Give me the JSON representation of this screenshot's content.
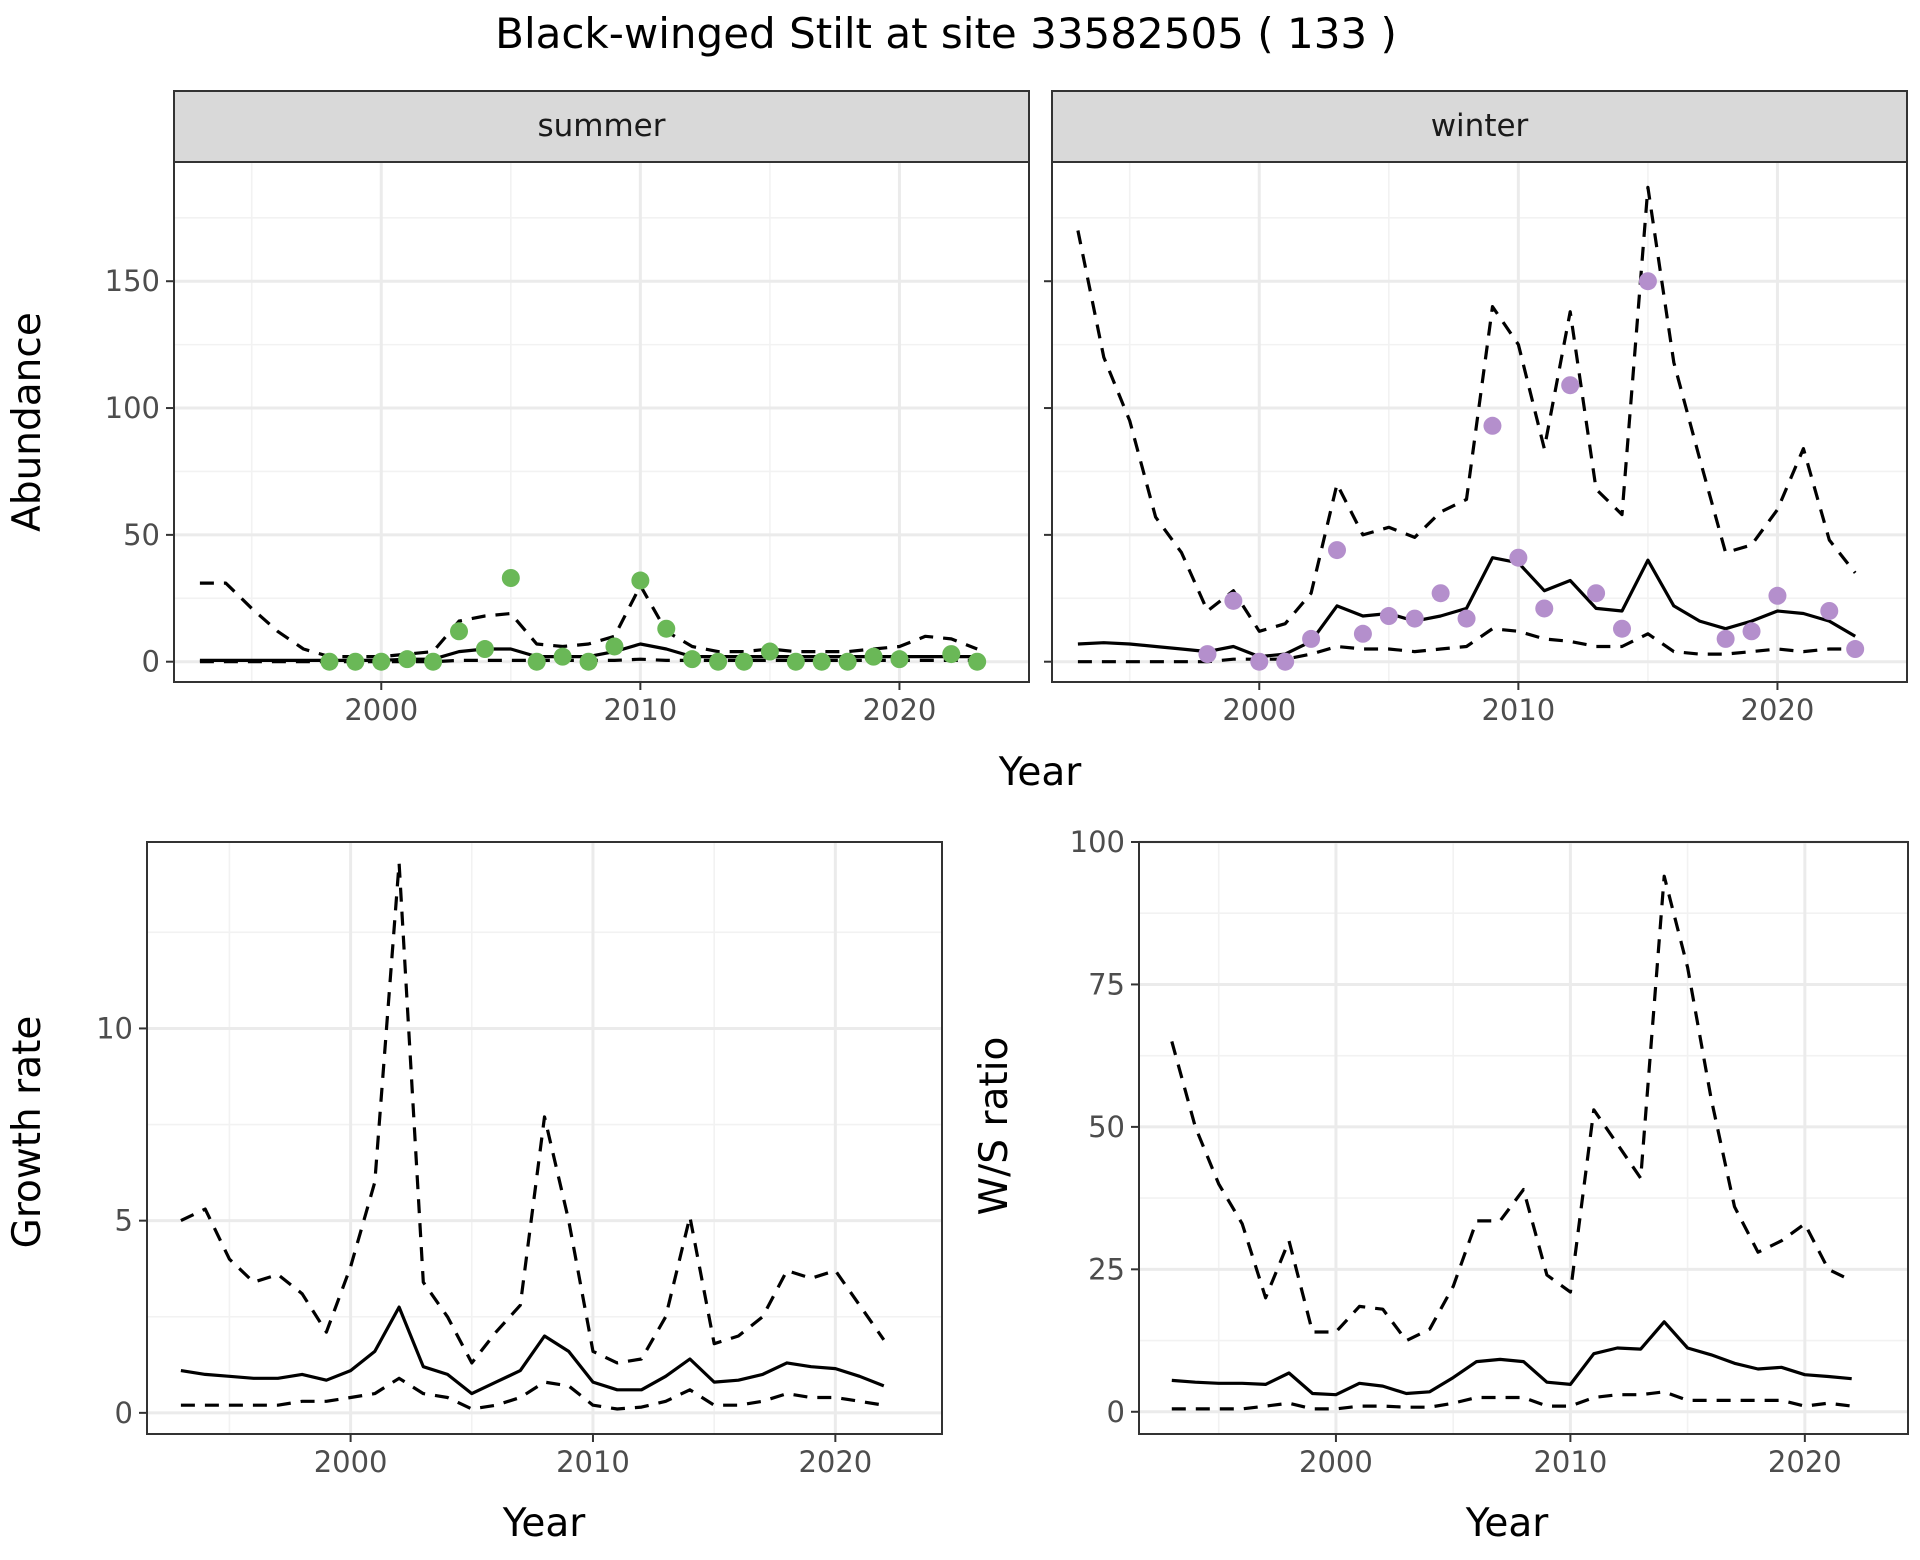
{
  "title": "Black-winged Stilt at site 33582505 ( 133 )",
  "colors": {
    "summer_points": "#6ab857",
    "winter_points": "#b48fcc",
    "lines": "#000000"
  },
  "top_shared_xlabel": "Year",
  "chart_data": [
    {
      "type": "line",
      "facet": "summer",
      "ylabel": "Abundance",
      "xlabel": "",
      "xlim": [
        1992,
        2025
      ],
      "ylim": [
        -8,
        197
      ],
      "xticks": [
        2000,
        2010,
        2020
      ],
      "yticks": [
        0,
        50,
        100,
        150
      ],
      "grid": true,
      "lower": {
        "x": [
          1993,
          1994,
          1995,
          1996,
          1997,
          1998,
          1999,
          2000,
          2001,
          2002,
          2003,
          2004,
          2005,
          2006,
          2007,
          2008,
          2009,
          2010,
          2011,
          2012,
          2013,
          2014,
          2015,
          2016,
          2017,
          2018,
          2019,
          2020,
          2021,
          2022,
          2023
        ],
        "y": [
          0,
          0,
          0,
          0,
          0,
          0,
          0,
          0,
          0,
          0,
          0.5,
          0.5,
          0.5,
          0.5,
          0.5,
          0.5,
          0.5,
          1,
          0.5,
          0.5,
          0.5,
          0.5,
          0.5,
          0.5,
          0.5,
          0.5,
          0.5,
          0.5,
          0.5,
          0.5,
          0.5
        ]
      },
      "estimate": {
        "x": [
          1993,
          1994,
          1995,
          1996,
          1997,
          1998,
          1999,
          2000,
          2001,
          2002,
          2003,
          2004,
          2005,
          2006,
          2007,
          2008,
          2009,
          2010,
          2011,
          2012,
          2013,
          2014,
          2015,
          2016,
          2017,
          2018,
          2019,
          2020,
          2021,
          2022,
          2023
        ],
        "y": [
          0.5,
          0.5,
          0.5,
          0.5,
          0.5,
          0.5,
          0.5,
          0.5,
          1,
          1,
          4,
          5,
          5,
          2,
          2,
          2,
          4,
          7,
          5,
          2,
          2,
          2,
          2,
          2,
          2,
          2,
          2,
          2,
          2,
          2,
          2
        ]
      },
      "upper": {
        "x": [
          1993,
          1994,
          1995,
          1996,
          1997,
          1998,
          1999,
          2000,
          2001,
          2002,
          2003,
          2004,
          2005,
          2006,
          2007,
          2008,
          2009,
          2010,
          2011,
          2012,
          2013,
          2014,
          2015,
          2016,
          2017,
          2018,
          2019,
          2020,
          2021,
          2022,
          2023
        ],
        "y": [
          31,
          31,
          21,
          12,
          5,
          2,
          2,
          2,
          3,
          4,
          16,
          18,
          19,
          7,
          6,
          7,
          10,
          30,
          12,
          6,
          4,
          4,
          5,
          4,
          4,
          4,
          5,
          6,
          10,
          9,
          5
        ]
      },
      "points": {
        "x": [
          1998,
          1999,
          2000,
          2001,
          2002,
          2003,
          2004,
          2005,
          2006,
          2007,
          2008,
          2009,
          2010,
          2011,
          2012,
          2013,
          2014,
          2015,
          2016,
          2017,
          2018,
          2019,
          2020,
          2022,
          2023
        ],
        "y": [
          0,
          0,
          0,
          1,
          0,
          12,
          5,
          33,
          0,
          2,
          0,
          6,
          32,
          13,
          1,
          0,
          0,
          4,
          0,
          0,
          0,
          2,
          1,
          3,
          0
        ]
      }
    },
    {
      "type": "line",
      "facet": "winter",
      "ylabel": "",
      "xlabel": "",
      "xlim": [
        1992,
        2025
      ],
      "ylim": [
        -8,
        197
      ],
      "xticks": [
        2000,
        2010,
        2020
      ],
      "yticks": [
        0,
        50,
        100,
        150
      ],
      "grid": true,
      "lower": {
        "x": [
          1993,
          1994,
          1995,
          1996,
          1997,
          1998,
          1999,
          2000,
          2001,
          2002,
          2003,
          2004,
          2005,
          2006,
          2007,
          2008,
          2009,
          2010,
          2011,
          2012,
          2013,
          2014,
          2015,
          2016,
          2017,
          2018,
          2019,
          2020,
          2021,
          2022,
          2023
        ],
        "y": [
          0,
          0,
          0,
          0,
          0,
          0,
          1,
          1,
          1,
          3,
          6,
          5,
          5,
          4,
          5,
          6,
          13,
          12,
          9,
          8,
          6,
          6,
          11,
          4,
          3,
          3,
          4,
          5,
          4,
          5,
          5
        ]
      },
      "estimate": {
        "x": [
          1993,
          1994,
          1995,
          1996,
          1997,
          1998,
          1999,
          2000,
          2001,
          2002,
          2003,
          2004,
          2005,
          2006,
          2007,
          2008,
          2009,
          2010,
          2011,
          2012,
          2013,
          2014,
          2015,
          2016,
          2017,
          2018,
          2019,
          2020,
          2021,
          2022,
          2023
        ],
        "y": [
          7,
          7.5,
          7,
          6,
          5,
          4,
          6,
          2,
          3,
          8,
          22,
          18,
          19,
          16,
          18,
          21,
          41,
          39,
          28,
          32,
          21,
          20,
          40,
          22,
          16,
          13,
          16,
          20,
          19,
          16,
          10
        ]
      },
      "upper": {
        "x": [
          1993,
          1994,
          1995,
          1996,
          1997,
          1998,
          1999,
          2000,
          2001,
          2002,
          2003,
          2004,
          2005,
          2006,
          2007,
          2008,
          2009,
          2010,
          2011,
          2012,
          2013,
          2014,
          2015,
          2016,
          2017,
          2018,
          2019,
          2020,
          2021,
          2022,
          2023
        ],
        "y": [
          170,
          120,
          95,
          57,
          43,
          20,
          28,
          12,
          15,
          27,
          70,
          50,
          53,
          49,
          59,
          64,
          140,
          125,
          84,
          138,
          68,
          58,
          187,
          118,
          80,
          43,
          46,
          60,
          84,
          48,
          35
        ]
      },
      "points": {
        "x": [
          1998,
          1999,
          2000,
          2001,
          2002,
          2003,
          2004,
          2005,
          2006,
          2007,
          2008,
          2009,
          2010,
          2011,
          2012,
          2013,
          2014,
          2015,
          2018,
          2019,
          2020,
          2022,
          2023
        ],
        "y": [
          3,
          24,
          0,
          0,
          9,
          44,
          11,
          18,
          17,
          27,
          17,
          93,
          41,
          21,
          109,
          27,
          13,
          150,
          9,
          12,
          26,
          20,
          5
        ]
      }
    },
    {
      "type": "line",
      "ylabel": "Growth rate",
      "xlabel": "Year",
      "xlim": [
        1991.6,
        2024.4
      ],
      "ylim": [
        -0.55,
        14.85
      ],
      "xticks": [
        2000,
        2010,
        2020
      ],
      "yticks": [
        0,
        5,
        10
      ],
      "grid": true,
      "lower": {
        "x": [
          1993,
          1994,
          1995,
          1996,
          1997,
          1998,
          1999,
          2000,
          2001,
          2002,
          2003,
          2004,
          2005,
          2006,
          2007,
          2008,
          2009,
          2010,
          2011,
          2012,
          2013,
          2014,
          2015,
          2016,
          2017,
          2018,
          2019,
          2020,
          2021,
          2022
        ],
        "y": [
          0.2,
          0.2,
          0.2,
          0.2,
          0.2,
          0.3,
          0.3,
          0.4,
          0.5,
          0.9,
          0.5,
          0.4,
          0.1,
          0.2,
          0.4,
          0.8,
          0.7,
          0.2,
          0.1,
          0.15,
          0.3,
          0.6,
          0.2,
          0.2,
          0.3,
          0.5,
          0.4,
          0.4,
          0.3,
          0.2
        ]
      },
      "estimate": {
        "x": [
          1993,
          1994,
          1995,
          1996,
          1997,
          1998,
          1999,
          2000,
          2001,
          2002,
          2003,
          2004,
          2005,
          2006,
          2007,
          2008,
          2009,
          2010,
          2011,
          2012,
          2013,
          2014,
          2015,
          2016,
          2017,
          2018,
          2019,
          2020,
          2021,
          2022
        ],
        "y": [
          1.1,
          1.0,
          0.95,
          0.9,
          0.9,
          1.0,
          0.85,
          1.1,
          1.6,
          2.75,
          1.2,
          1.0,
          0.5,
          0.8,
          1.1,
          2.0,
          1.6,
          0.8,
          0.6,
          0.6,
          0.95,
          1.4,
          0.8,
          0.85,
          1.0,
          1.3,
          1.2,
          1.15,
          0.95,
          0.7
        ]
      },
      "upper": {
        "x": [
          1993,
          1994,
          1995,
          1996,
          1997,
          1998,
          1999,
          2000,
          2001,
          2002,
          2003,
          2004,
          2005,
          2006,
          2007,
          2008,
          2009,
          2010,
          2011,
          2012,
          2013,
          2014,
          2015,
          2016,
          2017,
          2018,
          2019,
          2020,
          2021,
          2022
        ],
        "y": [
          5.0,
          5.3,
          4.0,
          3.4,
          3.6,
          3.1,
          2.1,
          3.8,
          6.0,
          14.3,
          3.4,
          2.5,
          1.3,
          2.1,
          2.8,
          7.7,
          5.0,
          1.6,
          1.3,
          1.4,
          2.5,
          5.1,
          1.8,
          2.0,
          2.5,
          3.7,
          3.5,
          3.7,
          2.8,
          1.9
        ]
      }
    },
    {
      "type": "line",
      "ylabel": "W/S ratio",
      "xlabel": "Year",
      "xlim": [
        1991.6,
        2024.4
      ],
      "ylim": [
        -3.9,
        100
      ],
      "xticks": [
        2000,
        2010,
        2020
      ],
      "yticks": [
        0,
        25,
        50,
        75,
        100
      ],
      "grid": true,
      "lower": {
        "x": [
          1993,
          1994,
          1995,
          1996,
          1997,
          1998,
          1999,
          2000,
          2001,
          2002,
          2003,
          2004,
          2005,
          2006,
          2007,
          2008,
          2009,
          2010,
          2011,
          2012,
          2013,
          2014,
          2015,
          2016,
          2017,
          2018,
          2019,
          2020,
          2021,
          2022
        ],
        "y": [
          0.5,
          0.5,
          0.5,
          0.5,
          1.0,
          1.5,
          0.5,
          0.5,
          1.0,
          1.0,
          0.8,
          0.8,
          1.5,
          2.5,
          2.5,
          2.5,
          1.0,
          1.0,
          2.5,
          3.0,
          3.0,
          3.5,
          2.0,
          2.0,
          2.0,
          2.0,
          2.0,
          1.0,
          1.5,
          1.0
        ]
      },
      "estimate": {
        "x": [
          1993,
          1994,
          1995,
          1996,
          1997,
          1998,
          1999,
          2000,
          2001,
          2002,
          2003,
          2004,
          2005,
          2006,
          2007,
          2008,
          2009,
          2010,
          2011,
          2012,
          2013,
          2014,
          2015,
          2016,
          2017,
          2018,
          2019,
          2020,
          2021,
          2022
        ],
        "y": [
          5.5,
          5.2,
          5.0,
          5.0,
          4.8,
          6.8,
          3.2,
          3.0,
          5.0,
          4.5,
          3.2,
          3.5,
          6.0,
          8.8,
          9.2,
          8.8,
          5.2,
          4.8,
          10.2,
          11.2,
          11.0,
          15.8,
          11.2,
          10.0,
          8.5,
          7.5,
          7.8,
          6.5,
          6.2,
          5.8
        ]
      },
      "upper": {
        "x": [
          1993,
          1994,
          1995,
          1996,
          1997,
          1998,
          1999,
          2000,
          2001,
          2002,
          2003,
          2004,
          2005,
          2006,
          2007,
          2008,
          2009,
          2010,
          2011,
          2012,
          2013,
          2014,
          2015,
          2016,
          2017,
          2018,
          2019,
          2020,
          2021,
          2022
        ],
        "y": [
          65,
          50,
          40,
          33,
          20,
          30,
          14,
          14,
          18.5,
          18.0,
          12.5,
          14.5,
          22,
          33.5,
          33.5,
          39,
          24,
          21,
          53,
          47,
          41,
          94,
          78,
          55,
          36,
          28,
          30,
          33,
          25,
          23
        ]
      }
    }
  ]
}
